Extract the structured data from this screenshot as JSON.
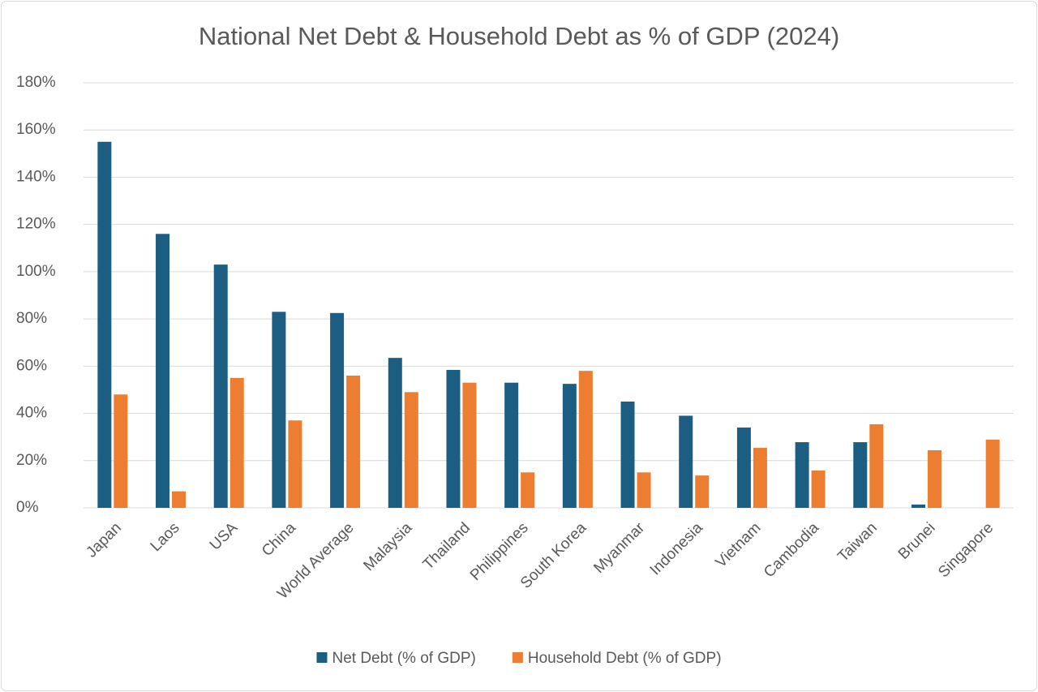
{
  "chart_data": {
    "type": "bar",
    "title": "National Net Debt & Household Debt as % of GDP (2024)",
    "categories": [
      "Japan",
      "Laos",
      "USA",
      "China",
      "World Average",
      "Malaysia",
      "Thailand",
      "Philippines",
      "South Korea",
      "Myanmar",
      "Indonesia",
      "Vietnam",
      "Cambodia",
      "Taiwan",
      "Brunei",
      "Singapore"
    ],
    "series": [
      {
        "name": "Net Debt (% of GDP)",
        "color": "#1b5e82",
        "values": [
          155,
          116,
          103,
          83,
          82.5,
          63.5,
          58.4,
          53,
          52.5,
          45,
          39,
          34,
          27.8,
          27.8,
          1.4,
          null
        ]
      },
      {
        "name": "Household Debt (% of GDP)",
        "color": "#ed7d31",
        "values": [
          48,
          7,
          55,
          37,
          56,
          49,
          53,
          15,
          58,
          15,
          13.7,
          25.4,
          15.8,
          35.4,
          24.4,
          28.9
        ]
      }
    ],
    "ylim": [
      0,
      180
    ],
    "yticks": [
      {
        "value": 0,
        "label": "0%"
      },
      {
        "value": 20,
        "label": "20%"
      },
      {
        "value": 40,
        "label": "40%"
      },
      {
        "value": 60,
        "label": "60%"
      },
      {
        "value": 80,
        "label": "80%"
      },
      {
        "value": 100,
        "label": "100%"
      },
      {
        "value": 120,
        "label": "120%"
      },
      {
        "value": 140,
        "label": "140%"
      },
      {
        "value": 160,
        "label": "160%"
      },
      {
        "value": 180,
        "label": "180%"
      }
    ],
    "grid": true,
    "legend": "bottom"
  }
}
